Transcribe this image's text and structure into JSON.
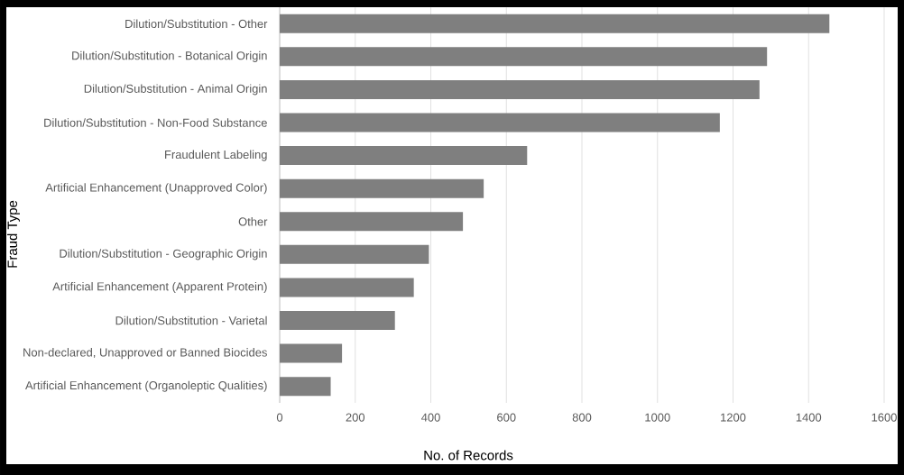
{
  "chart_data": {
    "type": "bar",
    "orientation": "horizontal",
    "xlabel": "No. of Records",
    "ylabel": "Fraud Type",
    "categories": [
      "Dilution/Substitution - Other",
      "Dilution/Substitution - Botanical Origin",
      "Dilution/Substitution - Animal Origin",
      "Dilution/Substitution - Non-Food Substance",
      "Fraudulent Labeling",
      "Artificial Enhancement (Unapproved Color)",
      "Other",
      "Dilution/Substitution - Geographic Origin",
      "Artificial Enhancement (Apparent Protein)",
      "Dilution/Substitution - Varietal",
      "Non-declared, Unapproved or Banned Biocides",
      "Artificial Enhancement (Organoleptic Qualities)"
    ],
    "values": [
      1455,
      1290,
      1270,
      1165,
      655,
      540,
      485,
      395,
      355,
      305,
      165,
      135
    ],
    "color": "#7f7f7f",
    "xlim": [
      0,
      1600
    ],
    "xticks": [
      0,
      200,
      400,
      600,
      800,
      1000,
      1200,
      1400,
      1600
    ],
    "grid": "x"
  }
}
